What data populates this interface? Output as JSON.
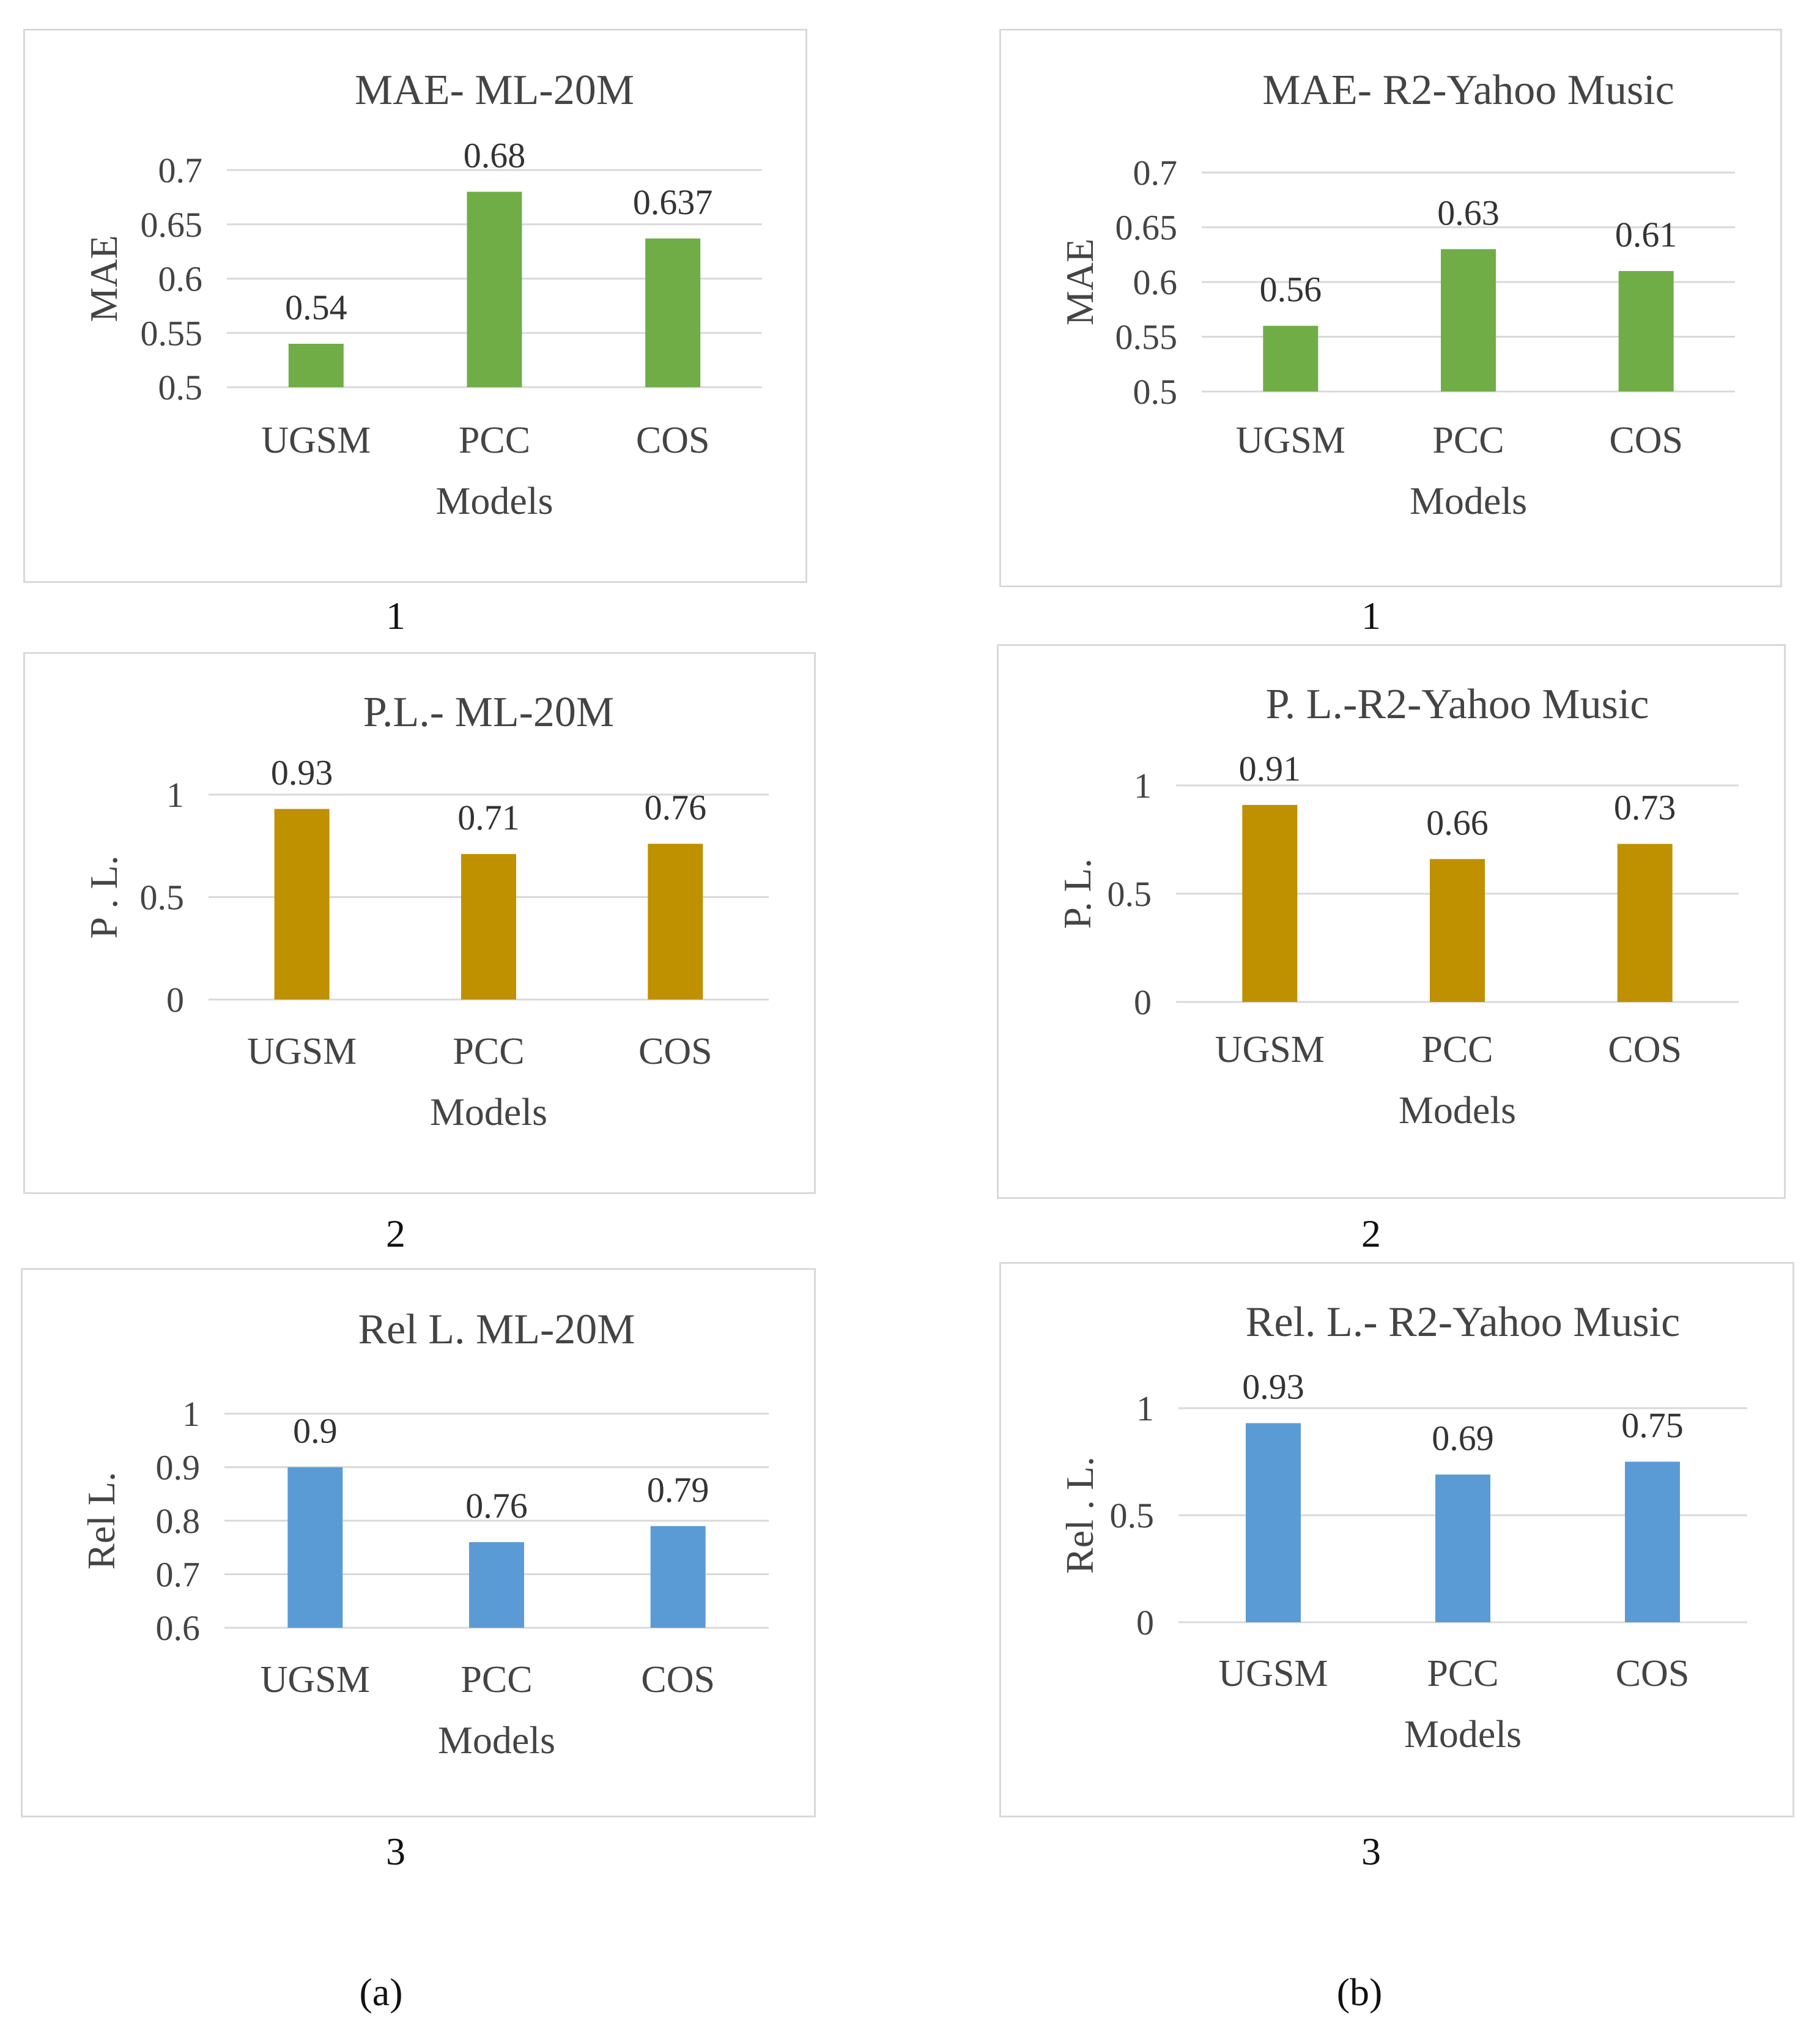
{
  "figure": {
    "panels": [
      "(a)",
      "(b)"
    ]
  },
  "chart_data": [
    {
      "type": "bar",
      "title": "MAE- ML-20M",
      "xlabel": "Models",
      "ylabel": "MAE",
      "categories": [
        "UGSM",
        "PCC",
        "COS"
      ],
      "values": [
        0.54,
        0.68,
        0.637
      ],
      "labels": [
        "0.54",
        "0.68",
        "0.637"
      ],
      "ylim": [
        0.5,
        0.7
      ],
      "ticks": [
        "0.5",
        "0.55",
        "0.6",
        "0.65",
        "0.7"
      ],
      "color": "#70ad47",
      "caption": "1",
      "grid": true
    },
    {
      "type": "bar",
      "title": "MAE- R2-Yahoo Music",
      "xlabel": "Models",
      "ylabel": "MAE",
      "categories": [
        "UGSM",
        "PCC",
        "COS"
      ],
      "values": [
        0.56,
        0.63,
        0.61
      ],
      "labels": [
        "0.56",
        "0.63",
        "0.61"
      ],
      "ylim": [
        0.5,
        0.7
      ],
      "ticks": [
        "0.5",
        "0.55",
        "0.6",
        "0.65",
        "0.7"
      ],
      "color": "#70ad47",
      "caption": "1",
      "grid": true
    },
    {
      "type": "bar",
      "title": "P.L.- ML-20M",
      "xlabel": "Models",
      "ylabel": "P . L.",
      "categories": [
        "UGSM",
        "PCC",
        "COS"
      ],
      "values": [
        0.93,
        0.71,
        0.76
      ],
      "labels": [
        "0.93",
        "0.71",
        "0.76"
      ],
      "ylim": [
        0,
        1
      ],
      "ticks": [
        "0",
        "0.5",
        "1"
      ],
      "color": "#bf9000",
      "caption": "2",
      "grid": true
    },
    {
      "type": "bar",
      "title": "P. L.-R2-Yahoo Music",
      "xlabel": "Models",
      "ylabel": "P. L.",
      "categories": [
        "UGSM",
        "PCC",
        "COS"
      ],
      "values": [
        0.91,
        0.66,
        0.73
      ],
      "labels": [
        "0.91",
        "0.66",
        "0.73"
      ],
      "ylim": [
        0,
        1
      ],
      "ticks": [
        "0",
        "0.5",
        "1"
      ],
      "color": "#bf9000",
      "caption": "2",
      "grid": true
    },
    {
      "type": "bar",
      "title": "Rel L. ML-20M",
      "xlabel": "Models",
      "ylabel": "Rel L.",
      "categories": [
        "UGSM",
        "PCC",
        "COS"
      ],
      "values": [
        0.9,
        0.76,
        0.79
      ],
      "labels": [
        "0.9",
        "0.76",
        "0.79"
      ],
      "ylim": [
        0.6,
        1
      ],
      "ticks": [
        "0.6",
        "0.7",
        "0.8",
        "0.9",
        "1"
      ],
      "color": "#5b9bd5",
      "caption": "3",
      "grid": true
    },
    {
      "type": "bar",
      "title": "Rel. L.- R2-Yahoo Music",
      "xlabel": "Models",
      "ylabel": "Rel . L.",
      "categories": [
        "UGSM",
        "PCC",
        "COS"
      ],
      "values": [
        0.93,
        0.69,
        0.75
      ],
      "labels": [
        "0.93",
        "0.69",
        "0.75"
      ],
      "ylim": [
        0,
        1
      ],
      "ticks": [
        "0",
        "0.5",
        "1"
      ],
      "color": "#5b9bd5",
      "caption": "3",
      "grid": true
    }
  ]
}
